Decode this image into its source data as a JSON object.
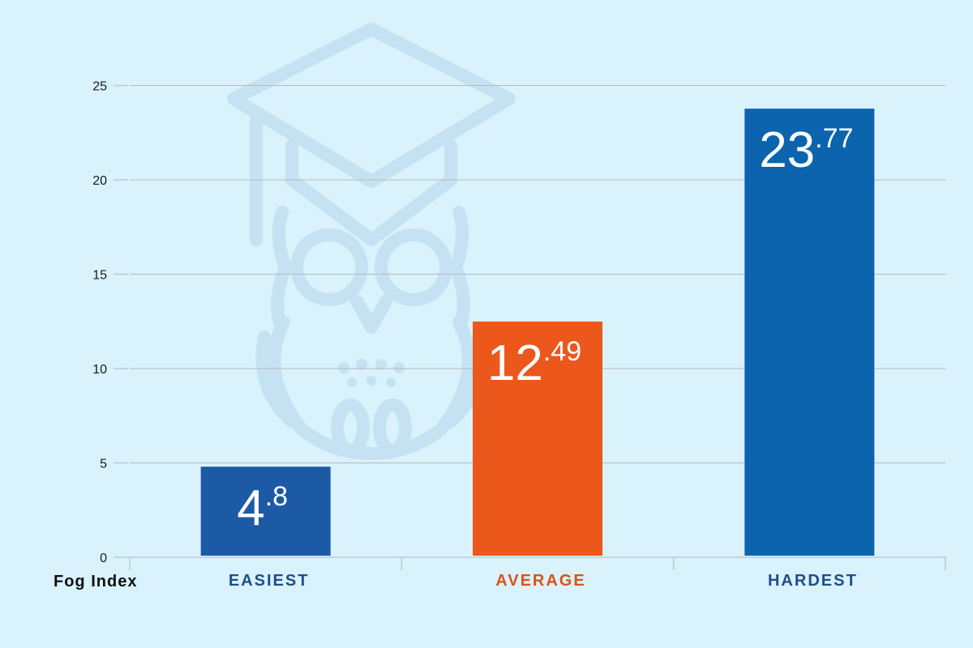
{
  "chart_data": {
    "type": "bar",
    "xlabel": "Fog Index",
    "ylabel": "",
    "ylim": [
      0,
      27
    ],
    "yticks": [
      0,
      5,
      10,
      15,
      20,
      25
    ],
    "grid": true,
    "categories": [
      "EASIEST",
      "AVERAGE",
      "HARDEST"
    ],
    "values": [
      4.8,
      12.49,
      23.77
    ],
    "value_labels": [
      {
        "integer": "4",
        "decimal": ".8"
      },
      {
        "integer": "12",
        "decimal": ".49"
      },
      {
        "integer": "23",
        "decimal": ".77"
      }
    ],
    "bar_colors": [
      "#1c5aa6",
      "#ec571b",
      "#0b64ad"
    ],
    "category_label_colors": [
      "#1f4e8c",
      "#d9531c",
      "#1f4e8c"
    ],
    "background_icon": "owl-graduation-cap-icon"
  }
}
